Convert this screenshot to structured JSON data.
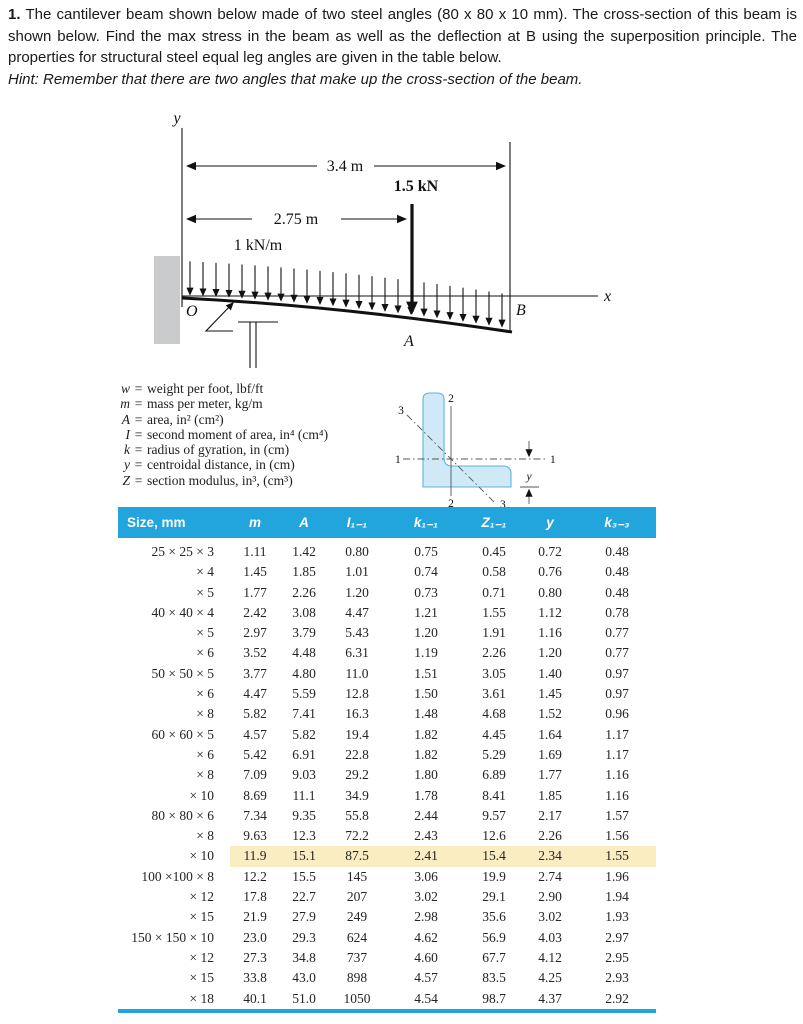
{
  "problem": {
    "number": "1.",
    "text": "The cantilever beam shown below made of two steel angles (80 x 80 x 10 mm). The cross-section of this beam is shown below. Find the max stress in the beam as well as the deflection at B using the superposition principle. The properties for structural steel equal leg angles are given in the table below.",
    "hint": "Hint: Remember that there are two angles that make up the cross-section of the beam."
  },
  "figure": {
    "dim_total": "3.4 m",
    "dim_to_load": "2.75 m",
    "point_load": "1.5 kN",
    "distributed_load": "1 kN/m",
    "labels": {
      "origin": "O",
      "load_point": "A",
      "free_end": "B",
      "x_axis": "x",
      "y_axis": "y"
    }
  },
  "legend": {
    "items": [
      {
        "symbol": "w",
        "definition": "weight per foot, lbf/ft"
      },
      {
        "symbol": "m",
        "definition": "mass per meter, kg/m"
      },
      {
        "symbol": "A",
        "definition": "area, in² (cm²)"
      },
      {
        "symbol": "I",
        "definition": "second moment of area, in⁴ (cm⁴)"
      },
      {
        "symbol": "k",
        "definition": "radius of gyration, in (cm)"
      },
      {
        "symbol": "y",
        "definition": "centroidal distance, in (cm)"
      },
      {
        "symbol": "Z",
        "definition": "section modulus, in³, (cm³)"
      }
    ]
  },
  "section": {
    "axis_1": "1",
    "axis_2": "2",
    "axis_3": "3",
    "centroid_distance": "y"
  },
  "table": {
    "headers": [
      "Size, mm",
      "m",
      "A",
      "I₁₋₁",
      "k₁₋₁",
      "Z₁₋₁",
      "y",
      "k₃₋₃"
    ],
    "rows": [
      {
        "size": "25 × 25 × 3",
        "m": "1.11",
        "A": "1.42",
        "I11": "0.80",
        "k11": "0.75",
        "Z11": "0.45",
        "y": "0.72",
        "k33": "0.48"
      },
      {
        "size": "× 4",
        "m": "1.45",
        "A": "1.85",
        "I11": "1.01",
        "k11": "0.74",
        "Z11": "0.58",
        "y": "0.76",
        "k33": "0.48"
      },
      {
        "size": "× 5",
        "m": "1.77",
        "A": "2.26",
        "I11": "1.20",
        "k11": "0.73",
        "Z11": "0.71",
        "y": "0.80",
        "k33": "0.48"
      },
      {
        "size": "40 × 40 × 4",
        "m": "2.42",
        "A": "3.08",
        "I11": "4.47",
        "k11": "1.21",
        "Z11": "1.55",
        "y": "1.12",
        "k33": "0.78"
      },
      {
        "size": "× 5",
        "m": "2.97",
        "A": "3.79",
        "I11": "5.43",
        "k11": "1.20",
        "Z11": "1.91",
        "y": "1.16",
        "k33": "0.77"
      },
      {
        "size": "× 6",
        "m": "3.52",
        "A": "4.48",
        "I11": "6.31",
        "k11": "1.19",
        "Z11": "2.26",
        "y": "1.20",
        "k33": "0.77"
      },
      {
        "size": "50 × 50 × 5",
        "m": "3.77",
        "A": "4.80",
        "I11": "11.0",
        "k11": "1.51",
        "Z11": "3.05",
        "y": "1.40",
        "k33": "0.97"
      },
      {
        "size": "× 6",
        "m": "4.47",
        "A": "5.59",
        "I11": "12.8",
        "k11": "1.50",
        "Z11": "3.61",
        "y": "1.45",
        "k33": "0.97"
      },
      {
        "size": "× 8",
        "m": "5.82",
        "A": "7.41",
        "I11": "16.3",
        "k11": "1.48",
        "Z11": "4.68",
        "y": "1.52",
        "k33": "0.96"
      },
      {
        "size": "60 × 60 × 5",
        "m": "4.57",
        "A": "5.82",
        "I11": "19.4",
        "k11": "1.82",
        "Z11": "4.45",
        "y": "1.64",
        "k33": "1.17"
      },
      {
        "size": "× 6",
        "m": "5.42",
        "A": "6.91",
        "I11": "22.8",
        "k11": "1.82",
        "Z11": "5.29",
        "y": "1.69",
        "k33": "1.17"
      },
      {
        "size": "× 8",
        "m": "7.09",
        "A": "9.03",
        "I11": "29.2",
        "k11": "1.80",
        "Z11": "6.89",
        "y": "1.77",
        "k33": "1.16"
      },
      {
        "size": "× 10",
        "m": "8.69",
        "A": "11.1",
        "I11": "34.9",
        "k11": "1.78",
        "Z11": "8.41",
        "y": "1.85",
        "k33": "1.16"
      },
      {
        "size": "80 × 80 × 6",
        "m": "7.34",
        "A": "9.35",
        "I11": "55.8",
        "k11": "2.44",
        "Z11": "9.57",
        "y": "2.17",
        "k33": "1.57"
      },
      {
        "size": "× 8",
        "m": "9.63",
        "A": "12.3",
        "I11": "72.2",
        "k11": "2.43",
        "Z11": "12.6",
        "y": "2.26",
        "k33": "1.56"
      },
      {
        "size": "× 10",
        "m": "11.9",
        "A": "15.1",
        "I11": "87.5",
        "k11": "2.41",
        "Z11": "15.4",
        "y": "2.34",
        "k33": "1.55",
        "highlight": true
      },
      {
        "size": "100 ×100 × 8",
        "m": "12.2",
        "A": "15.5",
        "I11": "145",
        "k11": "3.06",
        "Z11": "19.9",
        "y": "2.74",
        "k33": "1.96"
      },
      {
        "size": "× 12",
        "m": "17.8",
        "A": "22.7",
        "I11": "207",
        "k11": "3.02",
        "Z11": "29.1",
        "y": "2.90",
        "k33": "1.94"
      },
      {
        "size": "× 15",
        "m": "21.9",
        "A": "27.9",
        "I11": "249",
        "k11": "2.98",
        "Z11": "35.6",
        "y": "3.02",
        "k33": "1.93"
      },
      {
        "size": "150 × 150 × 10",
        "m": "23.0",
        "A": "29.3",
        "I11": "624",
        "k11": "4.62",
        "Z11": "56.9",
        "y": "4.03",
        "k33": "2.97"
      },
      {
        "size": "× 12",
        "m": "27.3",
        "A": "34.8",
        "I11": "737",
        "k11": "4.60",
        "Z11": "67.7",
        "y": "4.12",
        "k33": "2.95"
      },
      {
        "size": "× 15",
        "m": "33.8",
        "A": "43.0",
        "I11": "898",
        "k11": "4.57",
        "Z11": "83.5",
        "y": "4.25",
        "k33": "2.93"
      },
      {
        "size": "× 18",
        "m": "40.1",
        "A": "51.0",
        "I11": "1050",
        "k11": "4.54",
        "Z11": "98.7",
        "y": "4.37",
        "k33": "2.92"
      }
    ]
  },
  "colors": {
    "table_header_bg": "#21a5dc",
    "table_bottom_rule": "#21a5dc",
    "highlight_row_bg": "#fbedc2",
    "section_fill": "#cfe9f7",
    "section_stroke": "#5db3dd",
    "wall_fill": "#c9cbcd"
  }
}
